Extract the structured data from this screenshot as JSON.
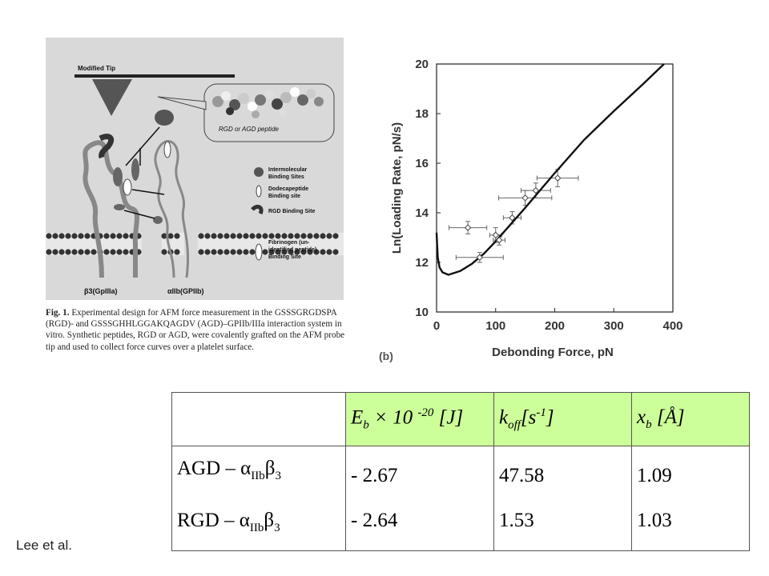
{
  "diagram": {
    "tip_label": "Modified Tip",
    "peptide_label": "RGD or AGD peptide",
    "legend": [
      {
        "icon": "checkered-blob",
        "label_1": "Intermolecular",
        "label_2": "Binding Sites"
      },
      {
        "icon": "white-oval",
        "label_1": "Dodecapeptide",
        "label_2": "Binding site"
      },
      {
        "icon": "rgd-crescent",
        "label_1": "RGD Binding Site",
        "label_2": ""
      },
      {
        "icon": "white-ellipse",
        "label_1": "Fibrinogen (un-",
        "label_2": "identified peptide)",
        "label_3": "Binding Site"
      }
    ],
    "subunit_left": "β3(GpIIIa)",
    "subunit_right": "αIIb(GPIIb)"
  },
  "caption": {
    "lead": "Fig. 1.",
    "text": " Experimental design for AFM force measurement in the GSSSGRGDSPA (RGD)- and GSSSGHHLGGAKQAGDV (AGD)–GPIIb/IIIa interaction system in vitro. Synthetic peptides, RGD or AGD, were covalently grafted on the AFM probe tip and used to collect force curves over a platelet surface."
  },
  "chart_data": {
    "type": "scatter",
    "xlabel": "Debonding Force, pN",
    "ylabel": "Ln(Loading Rate, pN/s)",
    "xlim": [
      0,
      400
    ],
    "ylim": [
      10,
      20
    ],
    "xticks": [
      "0",
      "100",
      "200",
      "300",
      "400"
    ],
    "yticks": [
      "10",
      "12",
      "14",
      "16",
      "18",
      "20"
    ],
    "panel_label": "(b)",
    "points": [
      {
        "x": 53,
        "y": 13.4,
        "xerr": 32,
        "yerr": 0.25
      },
      {
        "x": 73,
        "y": 12.2,
        "xerr": 40,
        "yerr": 0.2
      },
      {
        "x": 100,
        "y": 13.1,
        "xerr": 10,
        "yerr": 0.3
      },
      {
        "x": 106,
        "y": 12.9,
        "xerr": 10,
        "yerr": 0.2
      },
      {
        "x": 128,
        "y": 13.8,
        "xerr": 15,
        "yerr": 0.25
      },
      {
        "x": 150,
        "y": 14.6,
        "xerr": 45,
        "yerr": 0.3
      },
      {
        "x": 168,
        "y": 14.9,
        "xerr": 25,
        "yerr": 0.3
      },
      {
        "x": 205,
        "y": 15.4,
        "xerr": 35,
        "yerr": 0.35
      }
    ],
    "fit_curve": [
      [
        0,
        13.2
      ],
      [
        2,
        12.2
      ],
      [
        5,
        11.8
      ],
      [
        10,
        11.6
      ],
      [
        20,
        11.5
      ],
      [
        40,
        11.65
      ],
      [
        60,
        11.95
      ],
      [
        80,
        12.35
      ],
      [
        100,
        12.85
      ],
      [
        150,
        14.2
      ],
      [
        200,
        15.6
      ],
      [
        250,
        16.95
      ],
      [
        300,
        18.1
      ],
      [
        350,
        19.2
      ],
      [
        385,
        20
      ]
    ]
  },
  "table": {
    "headers": [
      "",
      "E",
      "b",
      " × 10 ",
      "-20",
      " [J]",
      "k",
      "off",
      "[s",
      "-1",
      "]",
      "x",
      "b",
      " [Å]"
    ],
    "rows": [
      {
        "label": "AGD – α",
        "sub": "IIb",
        "beta": "β",
        "betasub": "3",
        "e": "- 2.67",
        "k": "47.58",
        "x": "1.09"
      },
      {
        "label": "RGD – α",
        "sub": "IIb",
        "beta": "β",
        "betasub": "3",
        "e": "- 2.64",
        "k": "1.53",
        "x": "1.03"
      }
    ]
  },
  "credit": "Lee et al."
}
